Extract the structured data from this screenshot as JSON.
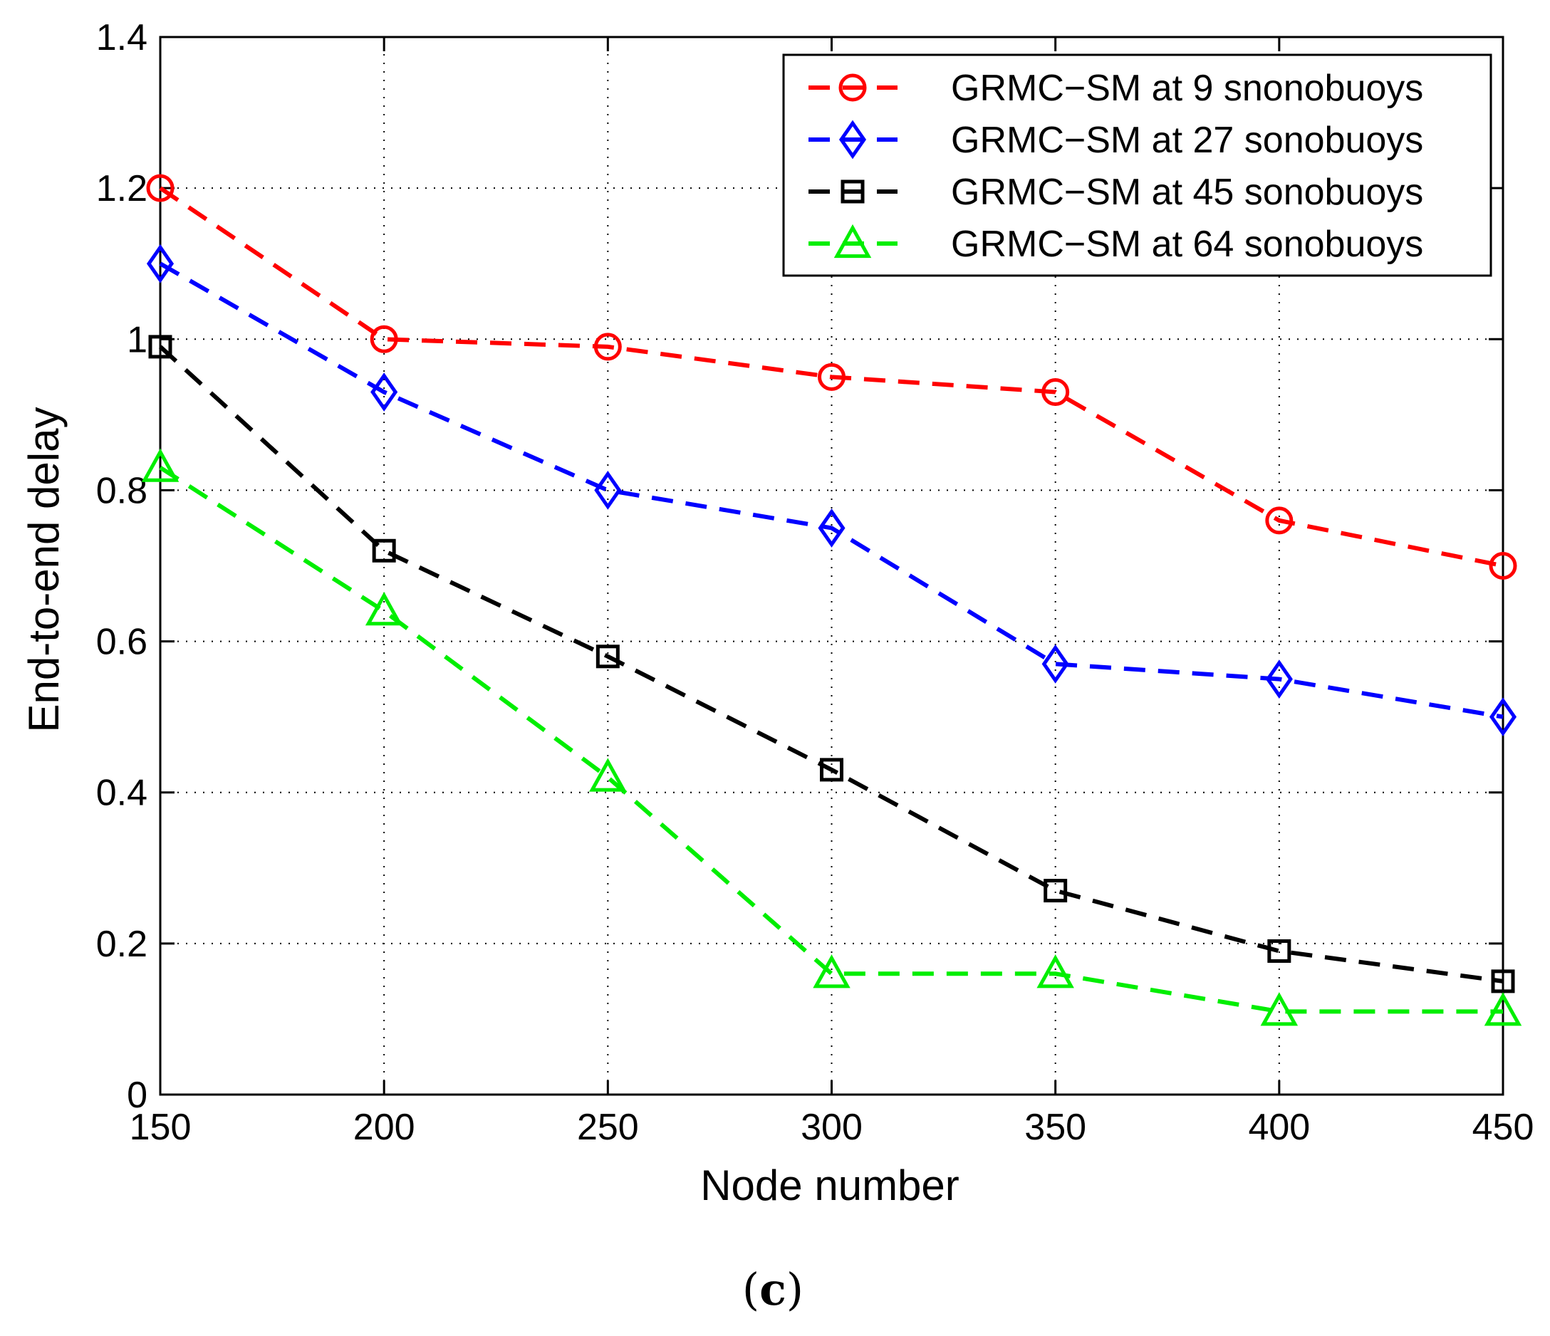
{
  "chart_data": {
    "type": "line",
    "title": "",
    "xlabel": "Node number",
    "ylabel": "End-to-end delay",
    "caption": "(c)",
    "caption_letter": "c",
    "caption_open": "(",
    "caption_close": ")",
    "xlim": [
      150,
      450
    ],
    "ylim": [
      0,
      1.4
    ],
    "x_ticks": [
      150,
      200,
      250,
      300,
      350,
      400,
      450
    ],
    "x_tick_labels": [
      "150",
      "200",
      "250",
      "300",
      "350",
      "400",
      "450"
    ],
    "y_ticks": [
      0,
      0.2,
      0.4,
      0.6,
      0.8,
      1,
      1.2,
      1.4
    ],
    "y_tick_labels": [
      "0",
      "0.2",
      "0.4",
      "0.6",
      "0.8",
      "1",
      "1.2",
      "1.4"
    ],
    "grid": true,
    "legend_position": "top-right",
    "x": [
      150,
      200,
      250,
      300,
      350,
      400,
      450
    ],
    "series": [
      {
        "name": "GRMC−SM at 9 snonobuoys",
        "color": "#ff0000",
        "marker": "circle",
        "values": [
          1.2,
          1.0,
          0.99,
          0.95,
          0.93,
          0.76,
          0.7
        ]
      },
      {
        "name": "GRMC−SM at 27 sonobuoys",
        "color": "#0000ff",
        "marker": "diamond",
        "values": [
          1.1,
          0.93,
          0.8,
          0.75,
          0.57,
          0.55,
          0.5
        ]
      },
      {
        "name": "GRMC−SM at 45 sonobuoys",
        "color": "#000000",
        "marker": "square",
        "values": [
          0.99,
          0.72,
          0.58,
          0.43,
          0.27,
          0.19,
          0.15
        ]
      },
      {
        "name": "GRMC−SM at 64 sonobuoys",
        "color": "#00ee00",
        "marker": "triangle",
        "values": [
          0.83,
          0.64,
          0.42,
          0.16,
          0.16,
          0.11,
          0.11
        ]
      }
    ]
  }
}
